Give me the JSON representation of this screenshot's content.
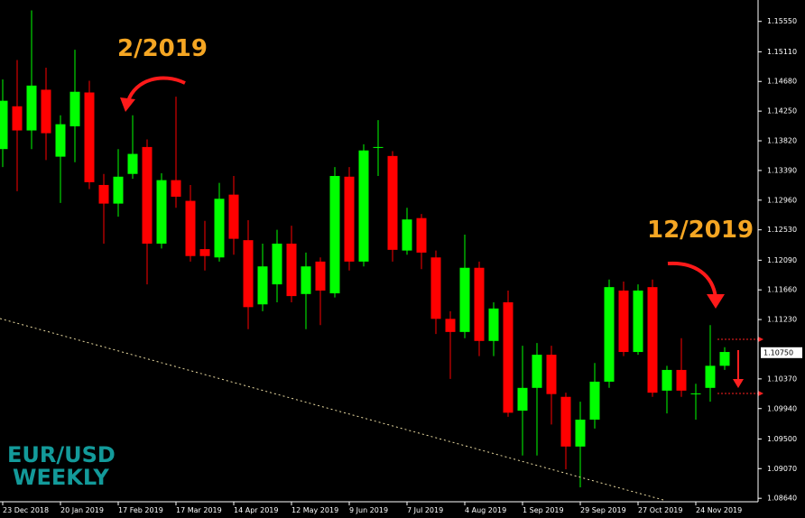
{
  "chart_data": {
    "type": "candlestick",
    "categories": [
      "23 Dec 2018",
      null,
      null,
      null,
      "20 Jan 2019",
      null,
      null,
      null,
      "17 Feb 2019",
      null,
      null,
      null,
      "17 Mar 2019",
      null,
      null,
      null,
      "14 Apr 2019",
      null,
      null,
      null,
      "12 May 2019",
      null,
      null,
      null,
      "9 Jun 2019",
      null,
      null,
      null,
      "7 Jul 2019",
      null,
      null,
      null,
      "4 Aug 2019",
      null,
      null,
      null,
      "1 Sep 2019",
      null,
      null,
      null,
      "29 Sep 2019",
      null,
      null,
      null,
      "27 Oct 2019",
      null,
      null,
      null,
      "24 Nov 2019",
      null,
      null
    ],
    "open": [
      1.137,
      1.1432,
      1.1397,
      1.1456,
      1.1359,
      1.1403,
      1.1452,
      1.1318,
      1.1291,
      1.1334,
      1.1373,
      1.1233,
      1.1325,
      1.1295,
      1.1225,
      1.1213,
      1.1304,
      1.1238,
      1.1145,
      1.1174,
      1.1233,
      1.116,
      1.1207,
      1.1161,
      1.133,
      1.1207,
      1.1372,
      1.136,
      1.1223,
      1.127,
      1.1213,
      1.1124,
      1.1105,
      1.1198,
      1.1092,
      1.1148,
      1.0991,
      1.1024,
      1.1072,
      1.1011,
      1.0939,
      1.0978,
      1.1033,
      1.1165,
      1.1076,
      1.117,
      1.102,
      1.105,
      1.1015,
      1.1024,
      1.1056
    ],
    "high": [
      1.1471,
      1.1499,
      1.1571,
      1.1488,
      1.1419,
      1.1514,
      1.1469,
      1.1334,
      1.137,
      1.1419,
      1.1384,
      1.1335,
      1.1446,
      1.1318,
      1.1266,
      1.1321,
      1.1331,
      1.1267,
      1.1233,
      1.1253,
      1.1259,
      1.122,
      1.1213,
      1.1344,
      1.1344,
      1.1377,
      1.1412,
      1.1367,
      1.1285,
      1.1276,
      1.1223,
      1.1135,
      1.1246,
      1.1207,
      1.1148,
      1.1165,
      1.1085,
      1.1089,
      1.1085,
      1.1017,
      1.1004,
      1.106,
      1.1181,
      1.1178,
      1.1174,
      1.1181,
      1.1056,
      1.1096,
      1.103,
      1.1115,
      1.1083
    ],
    "low": [
      1.1344,
      1.1309,
      1.137,
      1.1354,
      1.1292,
      1.1351,
      1.1312,
      1.1233,
      1.1272,
      1.1327,
      1.1174,
      1.1226,
      1.1285,
      1.1207,
      1.1194,
      1.1207,
      1.1217,
      1.1109,
      1.1135,
      1.1148,
      1.1148,
      1.1109,
      1.1115,
      1.1155,
      1.1194,
      1.12,
      1.1331,
      1.1207,
      1.1217,
      1.1196,
      1.1102,
      1.1037,
      1.1096,
      1.107,
      1.107,
      1.0982,
      1.0926,
      1.0926,
      1.0971,
      1.0906,
      1.088,
      1.0965,
      1.1024,
      1.107,
      1.1072,
      1.1011,
      1.0987,
      1.1011,
      1.0978,
      1.1004,
      1.105
    ],
    "close": [
      1.144,
      1.1397,
      1.1462,
      1.1393,
      1.1406,
      1.1453,
      1.1322,
      1.1291,
      1.133,
      1.1363,
      1.1233,
      1.1325,
      1.1301,
      1.1215,
      1.1215,
      1.1298,
      1.124,
      1.1141,
      1.12,
      1.1233,
      1.1157,
      1.12,
      1.1165,
      1.1331,
      1.1207,
      1.1368,
      1.1373,
      1.1224,
      1.1268,
      1.122,
      1.1124,
      1.1105,
      1.1198,
      1.1092,
      1.1139,
      1.0988,
      1.1024,
      1.1072,
      1.1015,
      1.0939,
      1.0978,
      1.1033,
      1.117,
      1.1076,
      1.1165,
      1.1017,
      1.105,
      1.102,
      1.1016,
      1.1056,
      1.1076
    ],
    "up_color": "#00ff00",
    "down_color": "#ff0000",
    "ylim": [
      1.0859,
      1.1586
    ],
    "yticks": [
      {
        "value": 1.1555,
        "label": "1.15550"
      },
      {
        "value": 1.1511,
        "label": "1.15110"
      },
      {
        "value": 1.1468,
        "label": "1.14680"
      },
      {
        "value": 1.1425,
        "label": "1.14250"
      },
      {
        "value": 1.1382,
        "label": "1.13820"
      },
      {
        "value": 1.1339,
        "label": "1.13390"
      },
      {
        "value": 1.1296,
        "label": "1.12960"
      },
      {
        "value": 1.1253,
        "label": "1.12530"
      },
      {
        "value": 1.1209,
        "label": "1.12090"
      },
      {
        "value": 1.1166,
        "label": "1.11660"
      },
      {
        "value": 1.1123,
        "label": "1.11230"
      },
      {
        "value": 1.1037,
        "label": "1.10370"
      },
      {
        "value": 1.0994,
        "label": "1.09940"
      },
      {
        "value": 1.095,
        "label": "1.09500"
      },
      {
        "value": 1.0907,
        "label": "1.09070"
      },
      {
        "value": 1.0864,
        "label": "1.08640"
      }
    ],
    "current_price": {
      "value": 1.1075,
      "label": "1.10750"
    },
    "annotations": [
      "2/2019",
      "12/2019"
    ],
    "symbol": "EUR/USD",
    "timeframe": "WEEKLY"
  }
}
